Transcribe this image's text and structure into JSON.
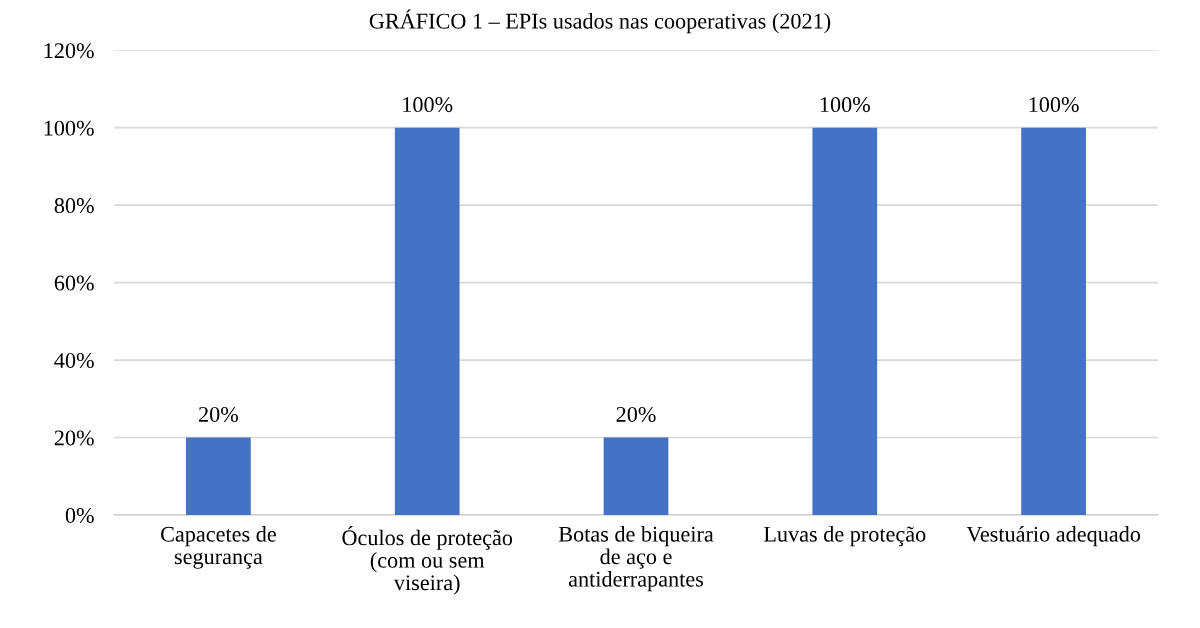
{
  "chart_data": {
    "type": "bar",
    "title": "GRÁFICO 1 – EPIs usados nas cooperativas (2021)",
    "categories": [
      "Capacetes de segurança",
      "Óculos de proteção (com ou sem viseira)",
      "Botas de biqueira de aço e antiderrapantes",
      "Luvas de proteção",
      "Vestuário adequado"
    ],
    "values": [
      20,
      100,
      20,
      100,
      100
    ],
    "color": "#4472c4",
    "value_labels": [
      "20%",
      "100%",
      "20%",
      "100%",
      "100%"
    ],
    "ylim": [
      0,
      120
    ],
    "yticks": [
      {
        "value": 0,
        "label": "0%"
      },
      {
        "value": 20,
        "label": "20%"
      },
      {
        "value": 40,
        "label": "40%"
      },
      {
        "value": 60,
        "label": "60%"
      },
      {
        "value": 80,
        "label": "80%"
      },
      {
        "value": 100,
        "label": "100%"
      },
      {
        "value": 120,
        "label": "120%"
      }
    ],
    "grid": "y",
    "legend": false
  }
}
